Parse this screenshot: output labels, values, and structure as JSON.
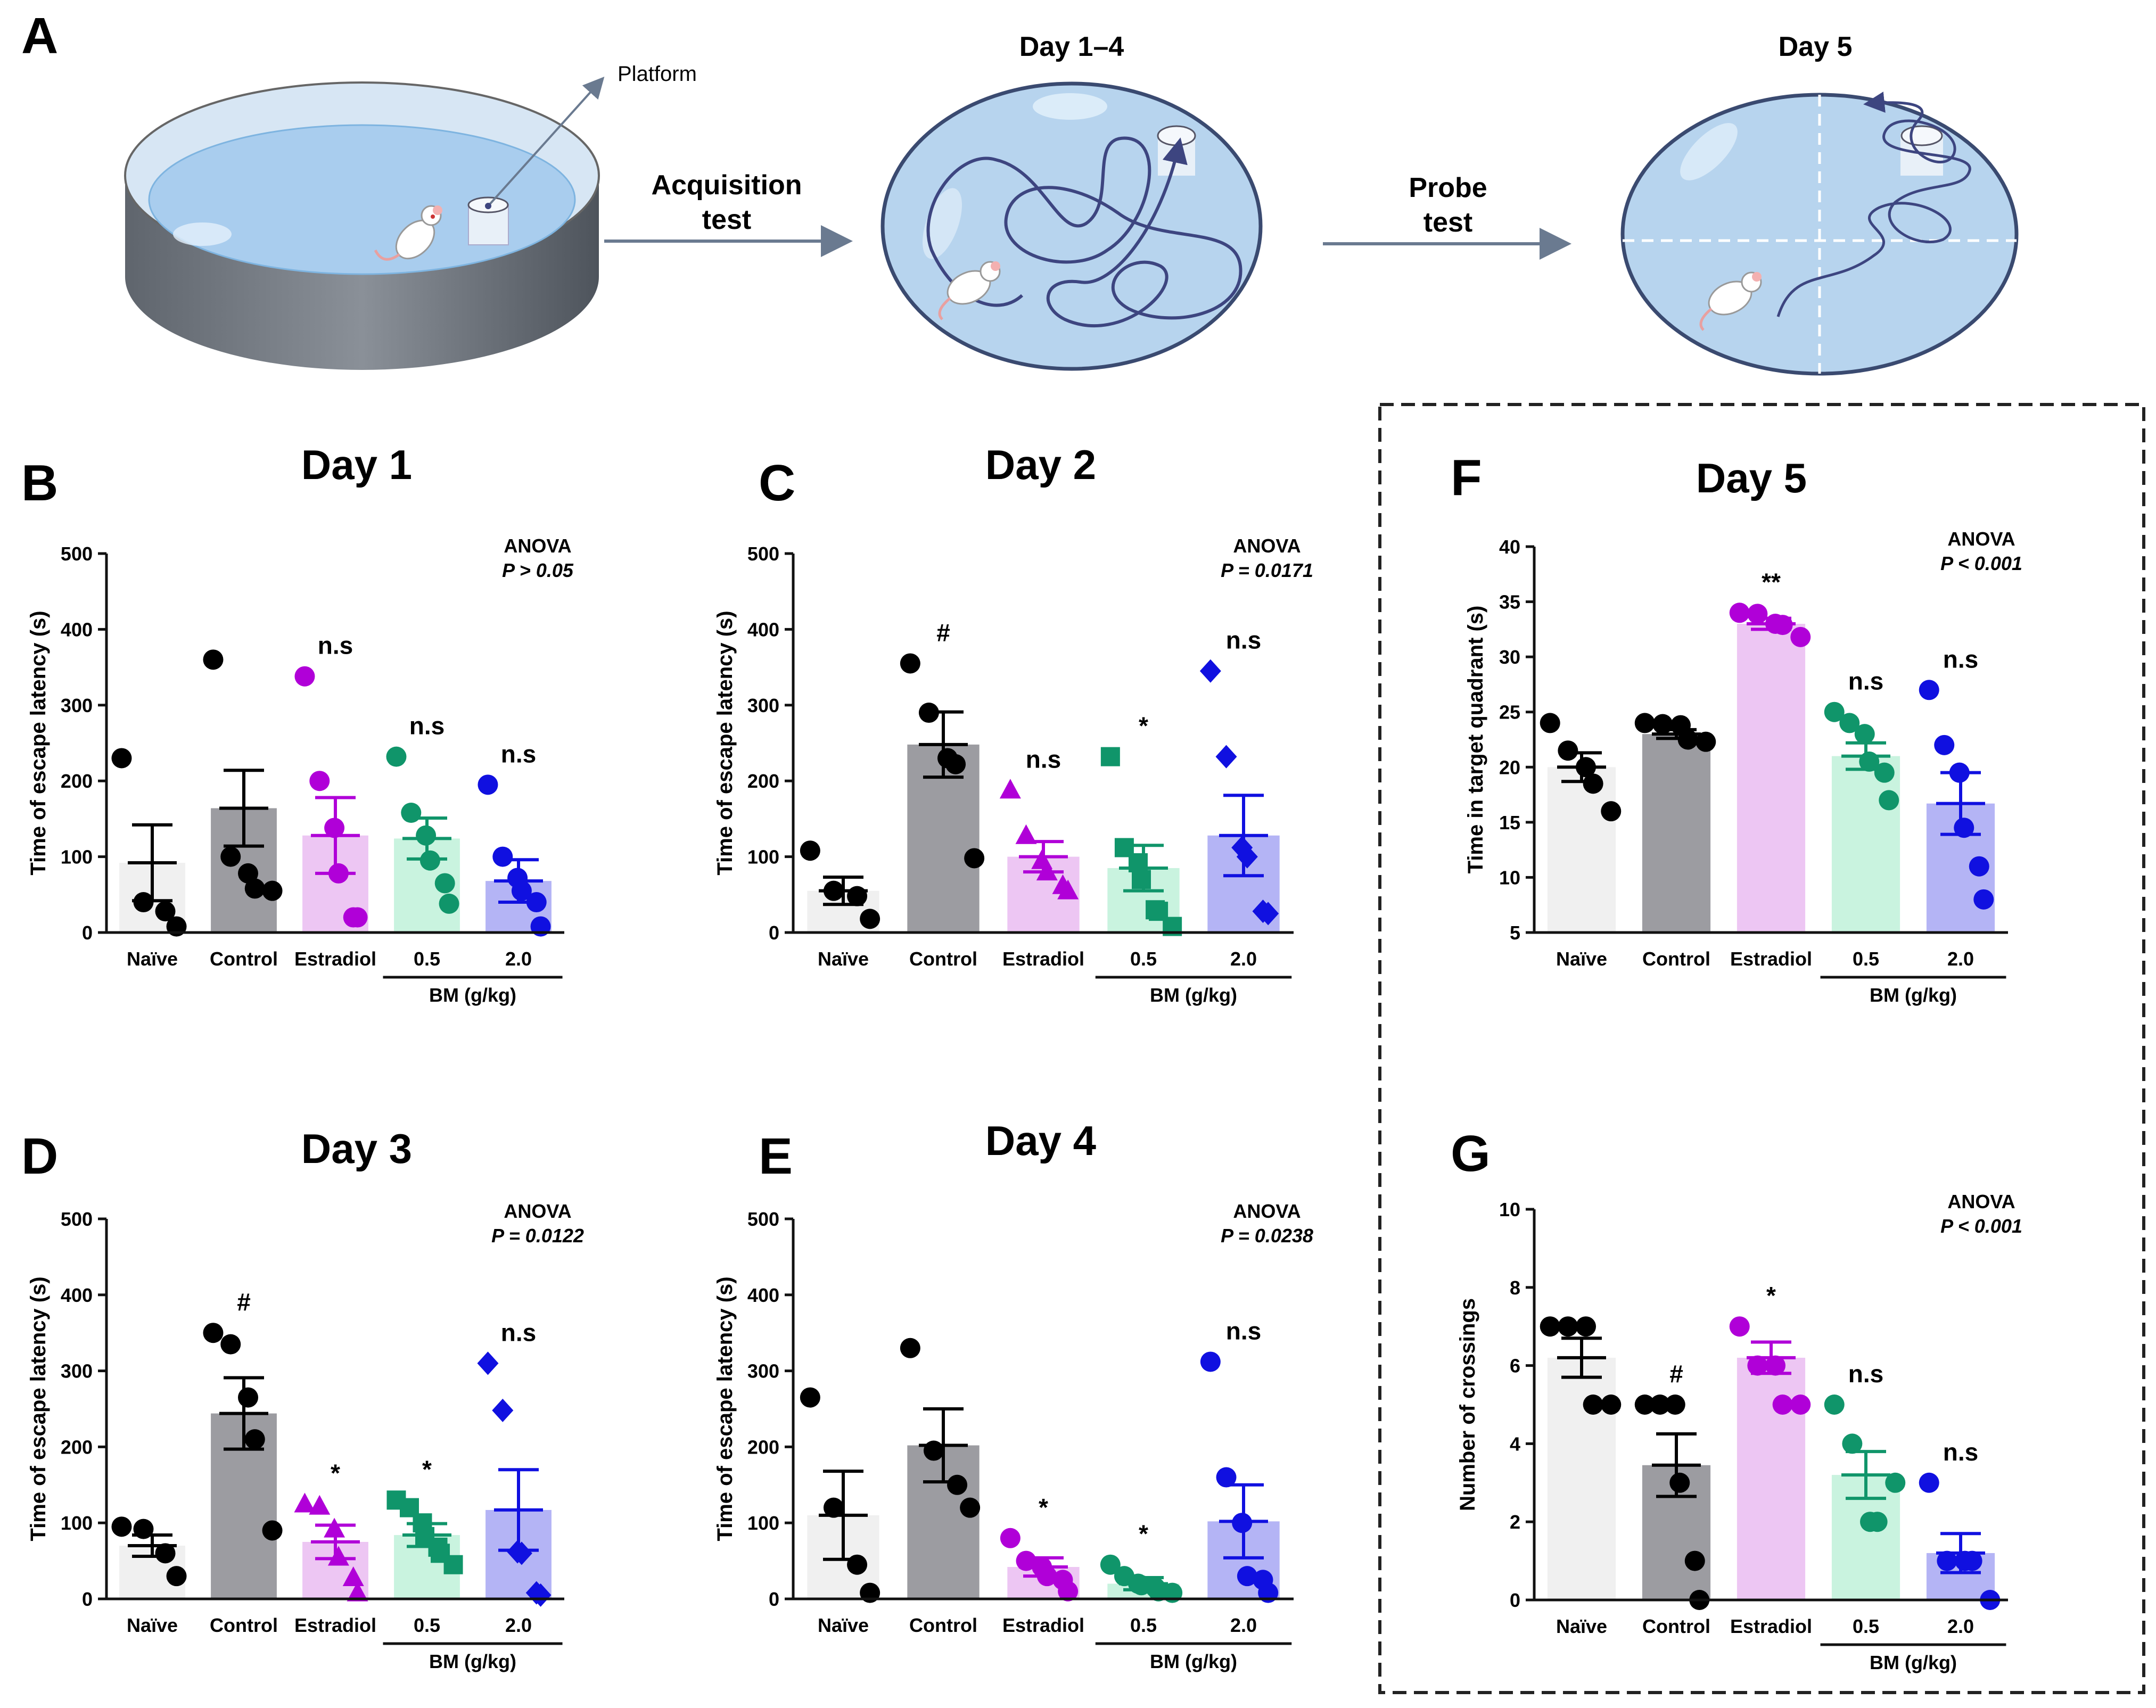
{
  "panel_a": {
    "label": "A",
    "platform_label": "Platform",
    "acquisition_label": [
      "Acquisition",
      "test"
    ],
    "day14_title": "Day 1–4",
    "probe_label": [
      "Probe",
      "test"
    ],
    "day5_title": "Day 5"
  },
  "colors": {
    "naive": "#000000",
    "naive_bar": "#f0f0f0",
    "control": "#000000",
    "control_bar": "#9c9ca1",
    "estradiol": "#b000d8",
    "estradiol_bar": "#edc6f3",
    "bm05": "#10956a",
    "bm05_bar": "#c9f3df",
    "bm20": "#1010e0",
    "bm20_bar": "#b4b4f5",
    "pool_fill": "#b7d4ee",
    "pool_edge": "#3a4a70",
    "path": "#3d4580",
    "arrow": "#6a7a90"
  },
  "chart_data": [
    {
      "type": "bar",
      "panel": "B",
      "title": "Day 1",
      "ylabel": "Time of escape latency (s)",
      "ylim": [
        0,
        500
      ],
      "yticks": [
        0,
        100,
        200,
        300,
        400,
        500
      ],
      "categories": [
        "Naïve",
        "Control",
        "Estradiol",
        "0.5",
        "2.0"
      ],
      "group_label": "BM (g/kg)",
      "anova": "ANOVA",
      "p_text": "P > 0.05",
      "bars": [
        92,
        164,
        128,
        124,
        68
      ],
      "sem": [
        50,
        50,
        50,
        27,
        28
      ],
      "points": [
        [
          230,
          40,
          28,
          8
        ],
        [
          360,
          100,
          78,
          58,
          55
        ],
        [
          338,
          200,
          138,
          78,
          20,
          20
        ],
        [
          232,
          158,
          128,
          95,
          65,
          38
        ],
        [
          195,
          100,
          72,
          55,
          40,
          8
        ]
      ],
      "markers": [
        "circle",
        "circle",
        "circle",
        "circle",
        "circle"
      ],
      "sig": [
        "",
        "",
        "n.s",
        "n.s",
        "n.s"
      ]
    },
    {
      "type": "bar",
      "panel": "C",
      "title": "Day 2",
      "ylabel": "Time of escape latency (s)",
      "ylim": [
        0,
        500
      ],
      "yticks": [
        0,
        100,
        200,
        300,
        400,
        500
      ],
      "categories": [
        "Naïve",
        "Control",
        "Estradiol",
        "0.5",
        "2.0"
      ],
      "group_label": "BM (g/kg)",
      "anova": "ANOVA",
      "p_text": "P = 0.0171",
      "bars": [
        55,
        248,
        100,
        85,
        128
      ],
      "sem": [
        18,
        43,
        20,
        30,
        53
      ],
      "points": [
        [
          108,
          55,
          48,
          18
        ],
        [
          355,
          290,
          230,
          222,
          98
        ],
        [
          188,
          128,
          95,
          80,
          62,
          55
        ],
        [
          232,
          112,
          92,
          70,
          30,
          28,
          8
        ],
        [
          345,
          232,
          112,
          100,
          28,
          25
        ]
      ],
      "markers": [
        "circle",
        "circle",
        "triangle",
        "square",
        "diamond"
      ],
      "sig": [
        "",
        "#",
        "n.s",
        "*",
        "n.s"
      ]
    },
    {
      "type": "bar",
      "panel": "D",
      "title": "Day 3",
      "ylabel": "Time of escape latency (s)",
      "ylim": [
        0,
        500
      ],
      "yticks": [
        0,
        100,
        200,
        300,
        400,
        500
      ],
      "categories": [
        "Naïve",
        "Control",
        "Estradiol",
        "0.5",
        "2.0"
      ],
      "group_label": "BM (g/kg)",
      "anova": "ANOVA",
      "p_text": "P = 0.0122",
      "bars": [
        70,
        244,
        75,
        84,
        117
      ],
      "sem": [
        14,
        47,
        22,
        15,
        53
      ],
      "points": [
        [
          95,
          92,
          60,
          30
        ],
        [
          350,
          335,
          265,
          210,
          90
        ],
        [
          125,
          122,
          92,
          55,
          28,
          8
        ],
        [
          130,
          120,
          100,
          82,
          68,
          60,
          45
        ],
        [
          310,
          248,
          62,
          60,
          8,
          5
        ]
      ],
      "markers": [
        "circle",
        "circle",
        "triangle",
        "square",
        "diamond"
      ],
      "sig": [
        "",
        "#",
        "*",
        "*",
        "n.s"
      ]
    },
    {
      "type": "bar",
      "panel": "E",
      "title": "Day 4",
      "ylabel": "Time of escape latency (s)",
      "ylim": [
        0,
        500
      ],
      "yticks": [
        0,
        100,
        200,
        300,
        400,
        500
      ],
      "categories": [
        "Naïve",
        "Control",
        "Estradiol",
        "0.5",
        "2.0"
      ],
      "group_label": "BM (g/kg)",
      "anova": "ANOVA",
      "p_text": "P = 0.0238",
      "bars": [
        110,
        202,
        42,
        20,
        102
      ],
      "sem": [
        58,
        48,
        12,
        8,
        48
      ],
      "points": [
        [
          265,
          120,
          45,
          8
        ],
        [
          330,
          195,
          150,
          120
        ],
        [
          80,
          50,
          42,
          30,
          25,
          10
        ],
        [
          45,
          30,
          20,
          18,
          15,
          10,
          8
        ],
        [
          312,
          160,
          100,
          30,
          25,
          8
        ]
      ],
      "markers": [
        "circle",
        "circle",
        "circle",
        "circle",
        "circle"
      ],
      "sig": [
        "",
        "",
        "*",
        "*",
        "n.s"
      ]
    },
    {
      "type": "bar",
      "panel": "F",
      "title": "Day 5",
      "ylabel": "Time in target quadrant (s)",
      "ylim": [
        5,
        40
      ],
      "yticks": [
        5,
        10,
        15,
        20,
        25,
        30,
        35,
        40
      ],
      "categories": [
        "Naïve",
        "Control",
        "Estradiol",
        "0.5",
        "2.0"
      ],
      "group_label": "BM (g/kg)",
      "anova": "ANOVA",
      "p_text": "P < 0.001",
      "bars": [
        20.0,
        23.0,
        33.0,
        21.0,
        16.7
      ],
      "sem": [
        1.3,
        0.4,
        0.5,
        1.2,
        2.8
      ],
      "points": [
        [
          24.0,
          21.5,
          20.0,
          18.5,
          16.0
        ],
        [
          24.0,
          23.9,
          23.8,
          22.5,
          22.3
        ],
        [
          34.0,
          33.9,
          33.0,
          32.9,
          31.8
        ],
        [
          25.0,
          24.0,
          23.0,
          20.5,
          19.5,
          17.0
        ],
        [
          27.0,
          22.0,
          19.5,
          14.5,
          11.0,
          8.0
        ]
      ],
      "markers": [
        "circle",
        "circle",
        "circle",
        "circle",
        "circle"
      ],
      "sig": [
        "",
        "",
        "**",
        "n.s",
        "n.s"
      ]
    },
    {
      "type": "bar",
      "panel": "G",
      "title": "",
      "ylabel": "Number of crossings",
      "ylim": [
        0,
        10
      ],
      "yticks": [
        0,
        2,
        4,
        6,
        8,
        10
      ],
      "categories": [
        "Naïve",
        "Control",
        "Estradiol",
        "0.5",
        "2.0"
      ],
      "group_label": "BM (g/kg)",
      "anova": "ANOVA",
      "p_text": "P < 0.001",
      "bars": [
        6.2,
        3.45,
        6.2,
        3.2,
        1.2
      ],
      "sem": [
        0.5,
        0.8,
        0.4,
        0.6,
        0.5
      ],
      "points": [
        [
          7,
          7,
          7,
          5,
          5
        ],
        [
          5,
          5,
          5,
          3,
          1,
          0
        ],
        [
          7,
          6,
          6,
          5,
          5
        ],
        [
          5,
          4,
          2,
          2,
          3
        ],
        [
          3,
          1,
          1,
          1,
          0
        ]
      ],
      "markers": [
        "circle",
        "circle",
        "circle",
        "circle",
        "circle"
      ],
      "sig": [
        "",
        "#",
        "*",
        "n.s",
        "n.s"
      ]
    }
  ]
}
